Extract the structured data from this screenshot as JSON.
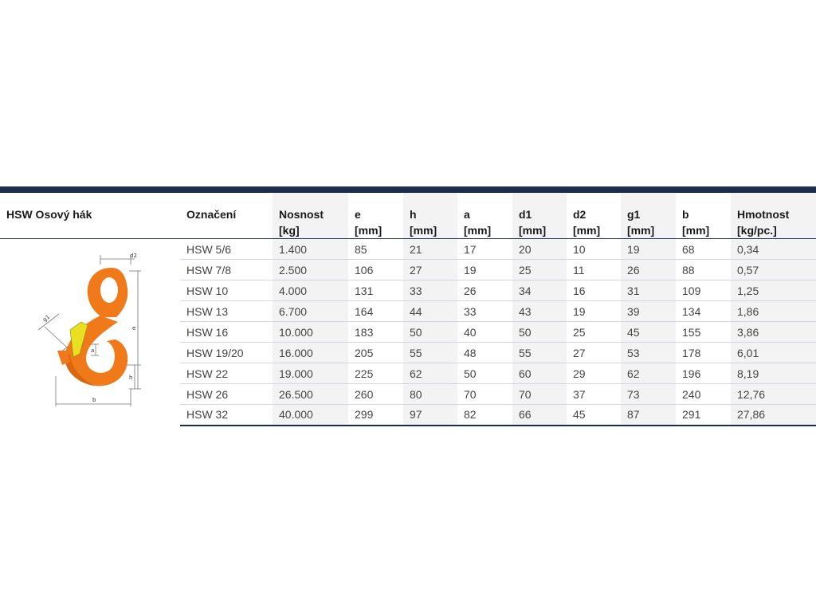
{
  "table": {
    "title": "HSW Osový hák",
    "headers": [
      {
        "l1": "Označení",
        "l2": ""
      },
      {
        "l1": "Nosnost",
        "l2": "[kg]"
      },
      {
        "l1": "e",
        "l2": "[mm]"
      },
      {
        "l1": "h",
        "l2": "[mm]"
      },
      {
        "l1": "a",
        "l2": "[mm]"
      },
      {
        "l1": "d1",
        "l2": "[mm]"
      },
      {
        "l1": "d2",
        "l2": "[mm]"
      },
      {
        "l1": "g1",
        "l2": "[mm]"
      },
      {
        "l1": "b",
        "l2": "[mm]"
      },
      {
        "l1": "Hmotnost",
        "l2": "[kg/pc.]"
      }
    ],
    "rows": [
      [
        "HSW 5/6",
        "1.400",
        "85",
        "21",
        "17",
        "20",
        "10",
        "19",
        "68",
        "0,34"
      ],
      [
        "HSW 7/8",
        "2.500",
        "106",
        "27",
        "19",
        "25",
        "11",
        "26",
        "88",
        "0,57"
      ],
      [
        "HSW 10",
        "4.000",
        "131",
        "33",
        "26",
        "34",
        "16",
        "31",
        "109",
        "1,25"
      ],
      [
        "HSW 13",
        "6.700",
        "164",
        "44",
        "33",
        "43",
        "19",
        "39",
        "134",
        "1,86"
      ],
      [
        "HSW 16",
        "10.000",
        "183",
        "50",
        "40",
        "50",
        "25",
        "45",
        "155",
        "3,86"
      ],
      [
        "HSW 19/20",
        "16.000",
        "205",
        "55",
        "48",
        "55",
        "27",
        "53",
        "178",
        "6,01"
      ],
      [
        "HSW 22",
        "19.000",
        "225",
        "62",
        "50",
        "60",
        "29",
        "62",
        "196",
        "8,19"
      ],
      [
        "HSW 26",
        "26.500",
        "260",
        "80",
        "70",
        "70",
        "37",
        "73",
        "240",
        "12,76"
      ],
      [
        "HSW 32",
        "40.000",
        "299",
        "97",
        "82",
        "66",
        "45",
        "87",
        "291",
        "27,86"
      ]
    ]
  },
  "diagram": {
    "labels": [
      "d2",
      "d1",
      "e",
      "g1",
      "a",
      "h",
      "b"
    ],
    "colors": {
      "hook": "#f07a1a",
      "hook_dark": "#c85a08",
      "latch": "#e8e020",
      "header_bar": "#1b2d4b"
    }
  }
}
